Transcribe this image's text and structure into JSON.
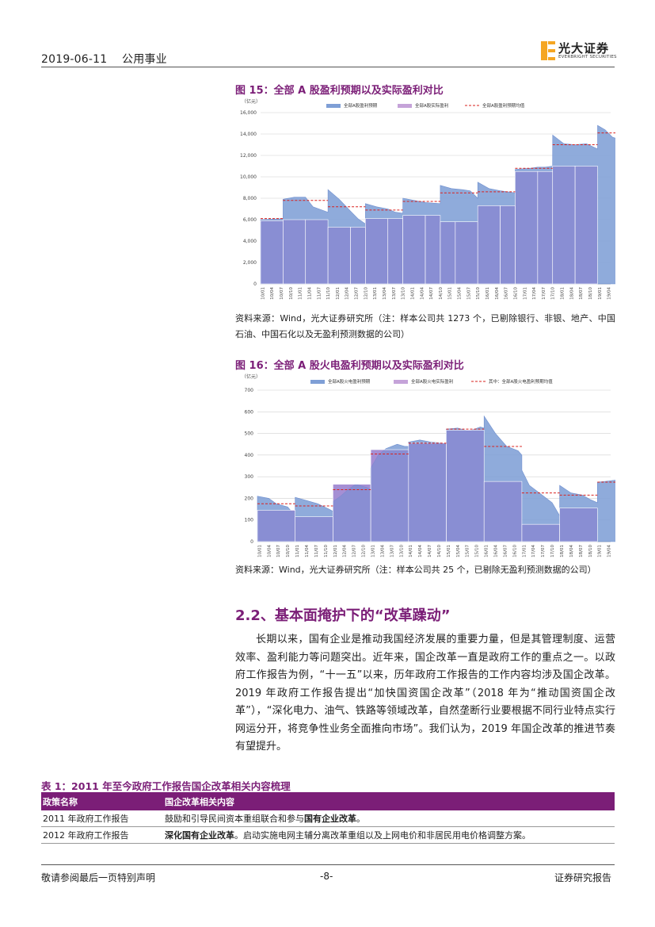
{
  "header": {
    "date": "2019-06-11",
    "sector": "公用事业",
    "logo_cn": "光大证券",
    "logo_en": "EVERBRIGHT SECURITIES",
    "logo_color": "#f5a623"
  },
  "figure15": {
    "title": "图 15：全部 A 股盈利预期以及实际盈利对比",
    "source": "资料来源：Wind，光大证券研究所（注：样本公司共 1273 个，已剔除银行、非银、地产、中国石油、中国石化以及无盈利预测数据的公司）"
  },
  "figure16": {
    "title": "图 16：全部 A 股火电盈利预期以及实际盈利对比",
    "source": "资料来源：Wind，光大证券研究所（注：样本公司共 25 个，已剔除无盈利预测数据的公司）"
  },
  "chart_data": [
    {
      "type": "area",
      "unit_label": "（亿元）",
      "ylim": [
        0,
        16000
      ],
      "yticks": [
        "0",
        "2,000",
        "4,000",
        "6,000",
        "8,000",
        "10,000",
        "12,000",
        "14,000",
        "16,000"
      ],
      "xticks": [
        "10/01",
        "10/04",
        "10/07",
        "10/10",
        "11/01",
        "11/04",
        "11/07",
        "11/10",
        "12/01",
        "12/04",
        "12/07",
        "12/10",
        "13/01",
        "13/04",
        "13/07",
        "13/10",
        "14/01",
        "14/04",
        "14/07",
        "14/10",
        "15/01",
        "15/04",
        "15/07",
        "15/10",
        "16/01",
        "16/04",
        "16/07",
        "16/10",
        "17/01",
        "17/04",
        "17/07",
        "17/10",
        "18/01",
        "18/04",
        "18/07",
        "18/10",
        "19/01",
        "19/04"
      ],
      "legend": [
        "全部A股盈利预期",
        "全部A股实际盈利",
        "全部A股盈利预期均值"
      ],
      "grid": true,
      "legend_position": "top",
      "colors": {
        "expected": "#7f9fd6",
        "actual": "#c5a3d9",
        "mean": "#d9211e"
      },
      "expected_series": [
        [
          0,
          6000
        ],
        [
          12,
          6100
        ],
        [
          12.01,
          7900
        ],
        [
          18,
          8100
        ],
        [
          24,
          8100
        ],
        [
          28,
          7200
        ],
        [
          36,
          6700
        ],
        [
          36.01,
          8800
        ],
        [
          42,
          7900
        ],
        [
          48,
          6800
        ],
        [
          52,
          6100
        ],
        [
          56,
          5600
        ],
        [
          56.01,
          7500
        ],
        [
          62,
          7200
        ],
        [
          68,
          7000
        ],
        [
          72,
          6700
        ],
        [
          76,
          6600
        ],
        [
          76.01,
          8000
        ],
        [
          82,
          7800
        ],
        [
          88,
          7600
        ],
        [
          96,
          7500
        ],
        [
          96.01,
          9200
        ],
        [
          102,
          8900
        ],
        [
          108,
          8800
        ],
        [
          112,
          8700
        ],
        [
          116,
          8000
        ],
        [
          116.01,
          9500
        ],
        [
          122,
          8900
        ],
        [
          128,
          8700
        ],
        [
          132,
          8600
        ],
        [
          136,
          8500
        ],
        [
          136.01,
          10700
        ],
        [
          144,
          10800
        ],
        [
          148,
          10900
        ],
        [
          152,
          10900
        ],
        [
          156,
          11000
        ],
        [
          156.01,
          13900
        ],
        [
          162,
          13100
        ],
        [
          168,
          13000
        ],
        [
          174,
          13100
        ],
        [
          180,
          12600
        ],
        [
          180.01,
          14800
        ],
        [
          184,
          14400
        ],
        [
          188,
          13700
        ],
        [
          192,
          13500
        ]
      ],
      "actual_bars": [
        [
          0,
          12,
          5900
        ],
        [
          12,
          24,
          6000
        ],
        [
          24,
          36,
          6000
        ],
        [
          36,
          48,
          5300
        ],
        [
          48,
          56,
          5300
        ],
        [
          56,
          68,
          6100
        ],
        [
          68,
          76,
          6100
        ],
        [
          76,
          88,
          6400
        ],
        [
          88,
          96,
          6400
        ],
        [
          96,
          104,
          5800
        ],
        [
          104,
          116,
          5800
        ],
        [
          116,
          128,
          7300
        ],
        [
          128,
          136,
          7300
        ],
        [
          136,
          148,
          10500
        ],
        [
          148,
          156,
          10500
        ],
        [
          156,
          168,
          11000
        ],
        [
          168,
          180,
          11000
        ]
      ],
      "mean_segments": [
        [
          0,
          12,
          6100
        ],
        [
          12,
          36,
          7800
        ],
        [
          36,
          56,
          7200
        ],
        [
          56,
          76,
          6900
        ],
        [
          76,
          96,
          7700
        ],
        [
          96,
          116,
          8500
        ],
        [
          116,
          136,
          8600
        ],
        [
          136,
          156,
          10800
        ],
        [
          156,
          180,
          13000
        ],
        [
          180,
          192,
          14100
        ]
      ]
    },
    {
      "type": "area",
      "unit_label": "（亿元）",
      "ylim": [
        0,
        700
      ],
      "yticks": [
        "0",
        "100",
        "200",
        "300",
        "400",
        "500",
        "600",
        "700"
      ],
      "xticks": [
        "10/01",
        "10/04",
        "10/07",
        "10/10",
        "11/01",
        "11/04",
        "11/07",
        "11/10",
        "12/01",
        "12/04",
        "12/07",
        "12/10",
        "13/01",
        "13/04",
        "13/07",
        "13/10",
        "14/01",
        "14/04",
        "14/07",
        "14/10",
        "15/01",
        "15/04",
        "15/07",
        "15/10",
        "16/01",
        "16/04",
        "16/07",
        "16/10",
        "17/01",
        "17/04",
        "17/07",
        "17/10",
        "18/01",
        "18/04",
        "18/07",
        "18/10",
        "19/01",
        "19/04"
      ],
      "legend": [
        "全部A股火电盈利预期",
        "全部A股火电实际盈利",
        "其中：全部A股火电盈利预期均值"
      ],
      "grid": true,
      "legend_position": "top",
      "colors": {
        "expected": "#7f9fd6",
        "actual": "#c5a3d9",
        "mean": "#d9211e"
      },
      "expected_series": [
        [
          0,
          210
        ],
        [
          6,
          200
        ],
        [
          10,
          175
        ],
        [
          16,
          160
        ],
        [
          18,
          140
        ],
        [
          20,
          140
        ],
        [
          20.01,
          205
        ],
        [
          26,
          190
        ],
        [
          32,
          175
        ],
        [
          38,
          150
        ],
        [
          40,
          140
        ],
        [
          40.01,
          185
        ],
        [
          44,
          210
        ],
        [
          48,
          240
        ],
        [
          52,
          265
        ],
        [
          58,
          250
        ],
        [
          60,
          240
        ],
        [
          60.01,
          340
        ],
        [
          64,
          400
        ],
        [
          68,
          430
        ],
        [
          74,
          450
        ],
        [
          78,
          440
        ],
        [
          80,
          440
        ],
        [
          80.01,
          460
        ],
        [
          86,
          470
        ],
        [
          92,
          460
        ],
        [
          98,
          455
        ],
        [
          100,
          450
        ],
        [
          100.01,
          520
        ],
        [
          106,
          525
        ],
        [
          112,
          510
        ],
        [
          118,
          530
        ],
        [
          120,
          525
        ],
        [
          120.01,
          580
        ],
        [
          126,
          500
        ],
        [
          132,
          440
        ],
        [
          138,
          420
        ],
        [
          140,
          400
        ],
        [
          140.01,
          330
        ],
        [
          144,
          260
        ],
        [
          150,
          220
        ],
        [
          156,
          180
        ],
        [
          160,
          120
        ],
        [
          160.01,
          260
        ],
        [
          166,
          225
        ],
        [
          172,
          215
        ],
        [
          176,
          195
        ],
        [
          180,
          180
        ],
        [
          180.01,
          275
        ],
        [
          186,
          280
        ],
        [
          190,
          285
        ]
      ],
      "actual_bars": [
        [
          0,
          20,
          145
        ],
        [
          20,
          40,
          115
        ],
        [
          40,
          60,
          265
        ],
        [
          60,
          80,
          425
        ],
        [
          80,
          100,
          455
        ],
        [
          100,
          120,
          515
        ],
        [
          120,
          140,
          278
        ],
        [
          140,
          160,
          80
        ],
        [
          160,
          180,
          155
        ]
      ],
      "mean_segments": [
        [
          0,
          20,
          175
        ],
        [
          20,
          40,
          165
        ],
        [
          40,
          60,
          240
        ],
        [
          60,
          80,
          405
        ],
        [
          80,
          100,
          455
        ],
        [
          100,
          120,
          520
        ],
        [
          120,
          140,
          440
        ],
        [
          140,
          160,
          225
        ],
        [
          160,
          180,
          215
        ],
        [
          180,
          190,
          275
        ]
      ]
    }
  ],
  "section": {
    "title": "2.2、基本面掩护下的“改革躁动”",
    "paragraph": "长期以来，国有企业是推动我国经济发展的重要力量，但是其管理制度、运营效率、盈利能力等问题突出。近年来，国企改革一直是政府工作的重点之一。以政府工作报告为例，“十一五”以来，历年政府工作报告的工作内容均涉及国企改革。2019 年政府工作报告提出“加快国资国企改革”（2018 年为“推动国资国企改革”），“深化电力、油气、铁路等领域改革，自然垄断行业要根据不同行业特点实行网运分开，将竞争性业务全面推向市场”。我们认为，2019 年国企改革的推进节奏有望提升。"
  },
  "table1": {
    "title": "表 1：2011 年至今政府工作报告国企改革相关内容梳理",
    "headers": [
      "政策名称",
      "国企改革相关内容"
    ],
    "rows": [
      {
        "name": "2011 年政府工作报告",
        "pre": "鼓励和引导民间资本重组联合和参与",
        "bold": "国有企业改革",
        "post": "。"
      },
      {
        "name": "2012 年政府工作报告",
        "pre": "",
        "bold": "深化国有企业改革",
        "post": "。启动实施电网主辅分离改革重组以及上网电价和非居民用电价格调整方案。"
      }
    ]
  },
  "footer": {
    "left": "敬请参阅最后一页特别声明",
    "page": "-8-",
    "right": "证券研究报告"
  }
}
